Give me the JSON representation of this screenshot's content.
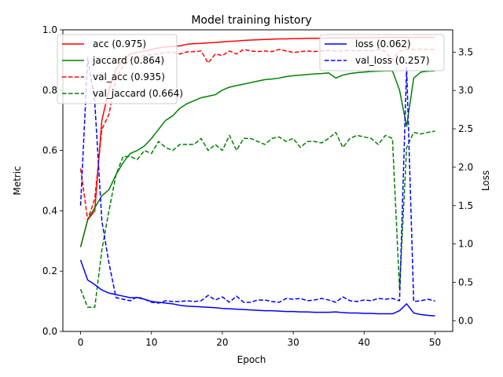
{
  "chart_data": {
    "type": "line",
    "title": "Model training history",
    "xlabel": "Epoch",
    "ylabel_left": "Metric",
    "ylabel_right": "Loss",
    "xlim": [
      -2.5,
      52.5
    ],
    "ylim_left": [
      0.0,
      1.0
    ],
    "ylim_right": [
      -0.14,
      3.79
    ],
    "xticks": [
      0,
      10,
      20,
      30,
      40,
      50
    ],
    "yticks_left": [
      0.0,
      0.2,
      0.4,
      0.6,
      0.8,
      1.0
    ],
    "yticks_left_labels": [
      "0.0",
      "0.2",
      "0.4",
      "0.6",
      "0.8",
      "1.0"
    ],
    "yticks_right": [
      0.0,
      0.5,
      1.0,
      1.5,
      2.0,
      2.5,
      3.0,
      3.5
    ],
    "yticks_right_labels": [
      "0.0",
      "0.5",
      "1.0",
      "1.5",
      "2.0",
      "2.5",
      "3.0",
      "3.5"
    ],
    "x": [
      0,
      1,
      2,
      3,
      4,
      5,
      6,
      7,
      8,
      9,
      10,
      11,
      12,
      13,
      14,
      15,
      16,
      17,
      18,
      19,
      20,
      21,
      22,
      23,
      24,
      25,
      26,
      27,
      28,
      29,
      30,
      31,
      32,
      33,
      34,
      35,
      36,
      37,
      38,
      39,
      40,
      41,
      42,
      43,
      44,
      45,
      46,
      47,
      48,
      49,
      50
    ],
    "series_left": [
      {
        "name": "acc",
        "legend_label": "acc (0.975)",
        "color": "#ff0000",
        "dash": "solid",
        "values": [
          0.28,
          0.37,
          0.4,
          0.7,
          0.8,
          0.87,
          0.9,
          0.92,
          0.925,
          0.93,
          0.935,
          0.94,
          0.943,
          0.945,
          0.947,
          0.952,
          0.954,
          0.955,
          0.957,
          0.958,
          0.96,
          0.962,
          0.963,
          0.965,
          0.966,
          0.967,
          0.968,
          0.969,
          0.97,
          0.97,
          0.971,
          0.971,
          0.972,
          0.972,
          0.972,
          0.973,
          0.973,
          0.973,
          0.973,
          0.974,
          0.974,
          0.974,
          0.974,
          0.975,
          0.975,
          0.975,
          0.975,
          0.975,
          0.975,
          0.975,
          0.975
        ]
      },
      {
        "name": "jaccard",
        "legend_label": "jaccard (0.864)",
        "color": "#008000",
        "dash": "solid",
        "values": [
          0.28,
          0.37,
          0.41,
          0.45,
          0.47,
          0.52,
          0.56,
          0.59,
          0.6,
          0.615,
          0.64,
          0.67,
          0.7,
          0.715,
          0.74,
          0.755,
          0.765,
          0.775,
          0.78,
          0.785,
          0.8,
          0.81,
          0.815,
          0.82,
          0.825,
          0.83,
          0.835,
          0.837,
          0.84,
          0.845,
          0.848,
          0.85,
          0.852,
          0.854,
          0.855,
          0.857,
          0.84,
          0.85,
          0.855,
          0.858,
          0.86,
          0.862,
          0.863,
          0.864,
          0.864,
          0.8,
          0.68,
          0.84,
          0.86,
          0.863,
          0.864
        ]
      },
      {
        "name": "val_acc",
        "legend_label": "val_acc (0.935)",
        "color": "#ff0000",
        "dash": "dashed",
        "values": [
          0.54,
          0.37,
          0.44,
          0.67,
          0.72,
          0.84,
          0.88,
          0.9,
          0.91,
          0.915,
          0.918,
          0.92,
          0.925,
          0.926,
          0.92,
          0.927,
          0.928,
          0.93,
          0.89,
          0.92,
          0.915,
          0.93,
          0.92,
          0.935,
          0.93,
          0.928,
          0.93,
          0.928,
          0.935,
          0.93,
          0.925,
          0.928,
          0.93,
          0.928,
          0.93,
          0.932,
          0.93,
          0.93,
          0.932,
          0.93,
          0.932,
          0.93,
          0.935,
          0.928,
          0.9,
          0.93,
          0.935,
          0.935,
          0.935,
          0.935,
          0.935
        ]
      },
      {
        "name": "val_jaccard",
        "legend_label": "val_jaccard (0.664)",
        "color": "#008000",
        "dash": "dashed",
        "values": [
          0.14,
          0.08,
          0.08,
          0.27,
          0.4,
          0.52,
          0.58,
          0.58,
          0.57,
          0.6,
          0.59,
          0.63,
          0.61,
          0.6,
          0.62,
          0.62,
          0.62,
          0.64,
          0.6,
          0.62,
          0.6,
          0.65,
          0.6,
          0.64,
          0.64,
          0.63,
          0.62,
          0.64,
          0.645,
          0.63,
          0.64,
          0.61,
          0.63,
          0.63,
          0.625,
          0.64,
          0.66,
          0.61,
          0.64,
          0.65,
          0.645,
          0.64,
          0.62,
          0.65,
          0.64,
          0.14,
          0.61,
          0.66,
          0.655,
          0.66,
          0.664
        ]
      }
    ],
    "series_right": [
      {
        "name": "loss",
        "legend_label": "loss (0.062)",
        "color": "#0000ff",
        "dash": "solid",
        "values": [
          0.79,
          0.53,
          0.47,
          0.4,
          0.36,
          0.34,
          0.32,
          0.3,
          0.3,
          0.28,
          0.25,
          0.24,
          0.23,
          0.22,
          0.2,
          0.19,
          0.185,
          0.18,
          0.175,
          0.17,
          0.16,
          0.155,
          0.15,
          0.145,
          0.14,
          0.135,
          0.13,
          0.13,
          0.125,
          0.12,
          0.12,
          0.115,
          0.115,
          0.11,
          0.11,
          0.11,
          0.115,
          0.105,
          0.1,
          0.1,
          0.095,
          0.095,
          0.09,
          0.09,
          0.09,
          0.13,
          0.22,
          0.1,
          0.08,
          0.07,
          0.062
        ]
      },
      {
        "name": "val_loss",
        "legend_label": "val_loss (0.257)",
        "color": "#0000ff",
        "dash": "dashed",
        "values": [
          1.5,
          3.43,
          2.85,
          1.3,
          0.75,
          0.3,
          0.28,
          0.26,
          0.31,
          0.28,
          0.24,
          0.23,
          0.26,
          0.25,
          0.25,
          0.26,
          0.25,
          0.26,
          0.33,
          0.27,
          0.31,
          0.24,
          0.32,
          0.24,
          0.24,
          0.27,
          0.27,
          0.25,
          0.24,
          0.29,
          0.28,
          0.29,
          0.26,
          0.27,
          0.29,
          0.27,
          0.24,
          0.31,
          0.26,
          0.25,
          0.27,
          0.26,
          0.29,
          0.28,
          0.29,
          0.26,
          3.3,
          0.25,
          0.26,
          0.28,
          0.257
        ]
      }
    ]
  }
}
